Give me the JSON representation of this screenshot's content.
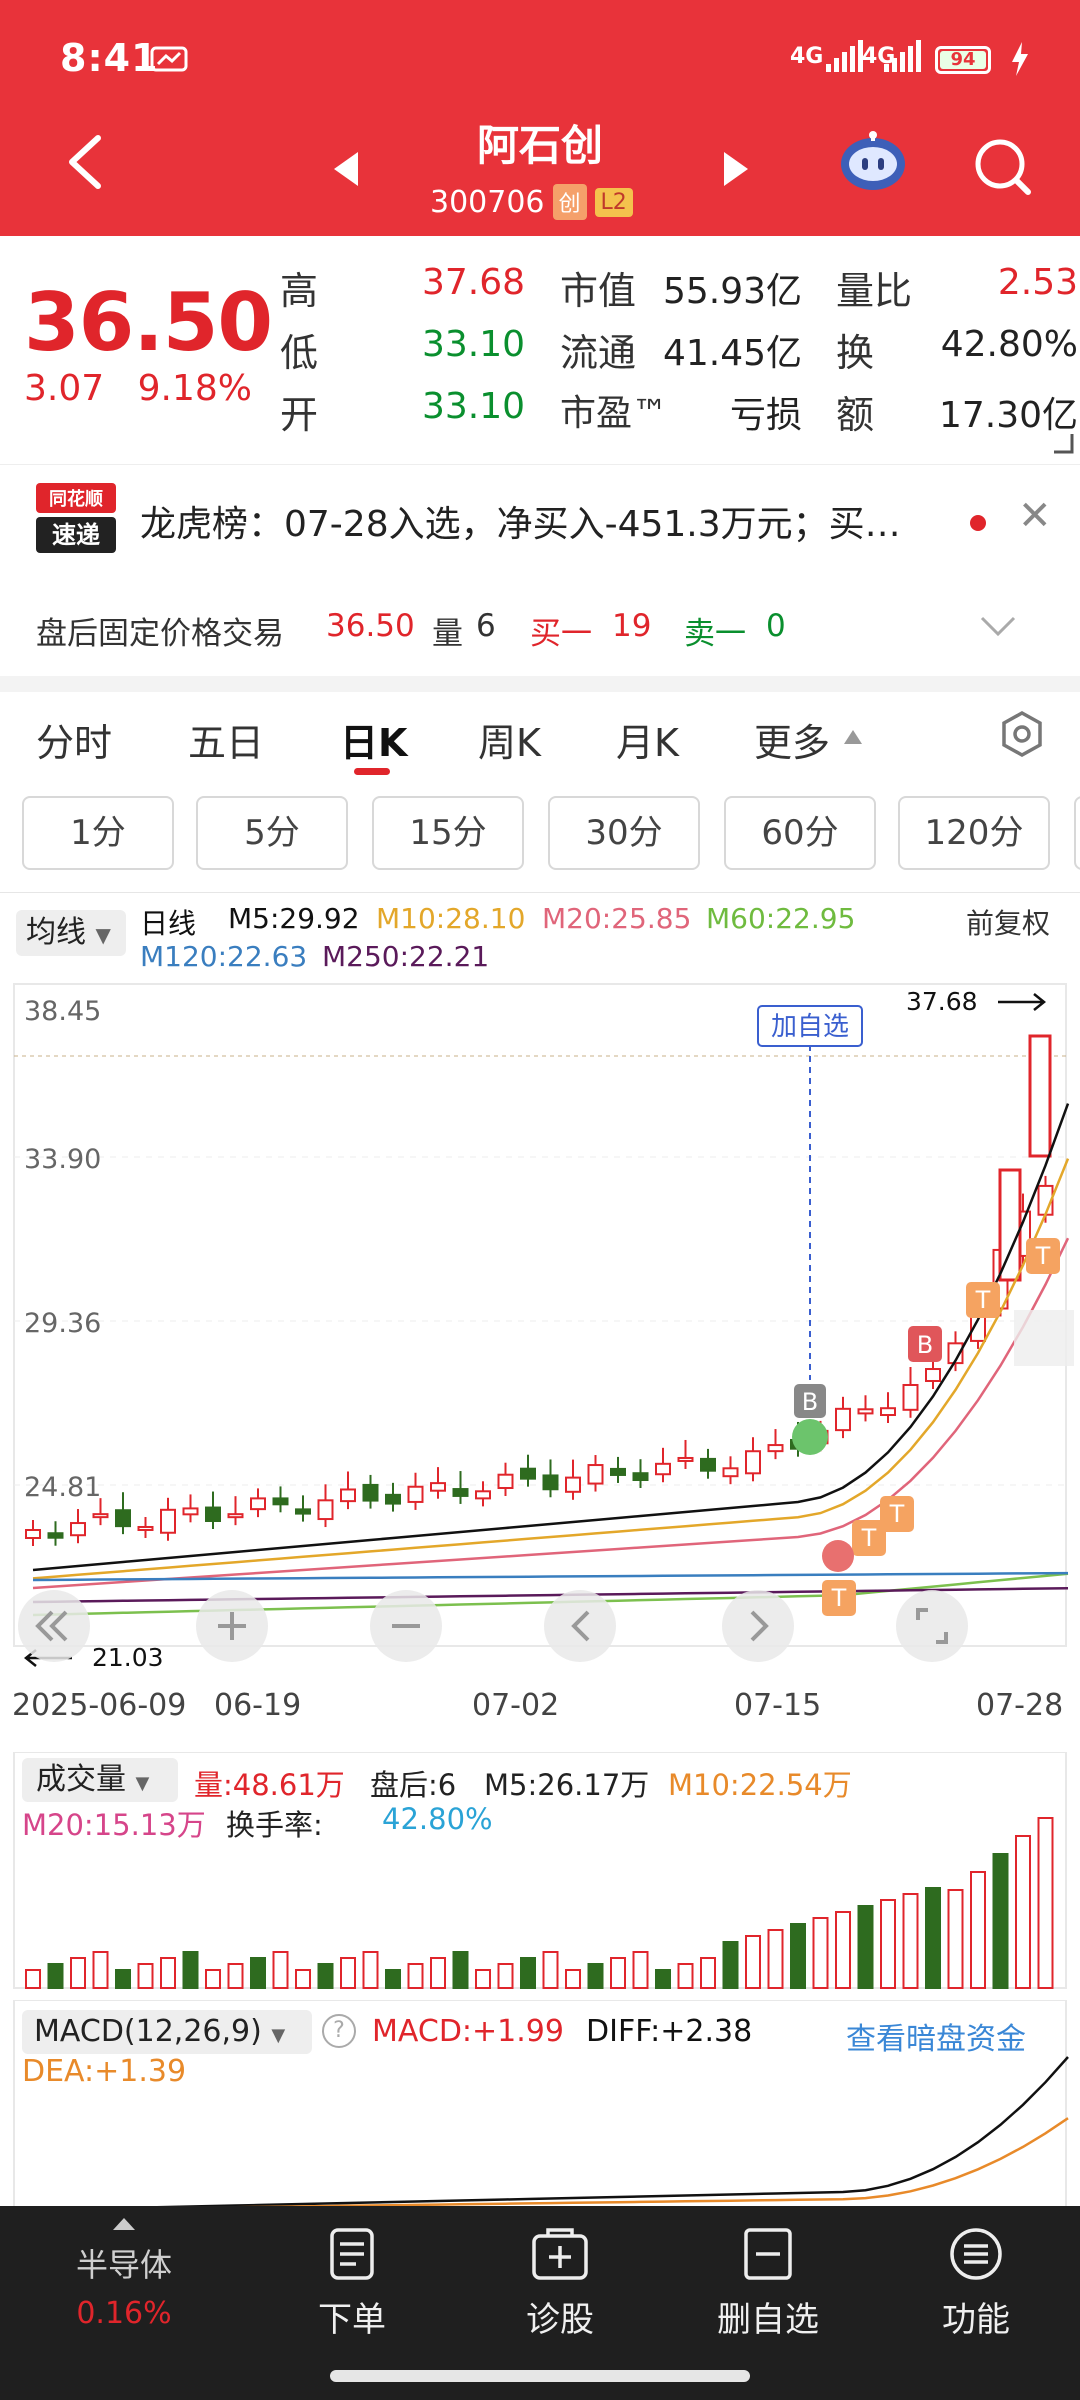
{
  "status": {
    "time": "8:41",
    "network1": "4G",
    "network2": "4G",
    "battery": "94"
  },
  "header": {
    "name": "阿石创",
    "code": "300706",
    "tag1": "创",
    "tag2": "L2"
  },
  "quote": {
    "price": "36.50",
    "change": "3.07",
    "change_pct": "9.18%",
    "high_label": "高",
    "high": "37.68",
    "low_label": "低",
    "low": "33.10",
    "open_label": "开",
    "open": "33.10",
    "mcap_label": "市值",
    "mcap": "55.93亿",
    "float_label": "流通",
    "float": "41.45亿",
    "pe_label": "市盈™",
    "pe": "亏损",
    "volratio_label": "量比",
    "volratio": "2.53",
    "turnover_label": "换",
    "turnover": "42.80%",
    "amount_label": "额",
    "amount": "17.30亿"
  },
  "news": {
    "logo_top": "同花顺",
    "logo_bottom": "速递",
    "text": "龙虎榜：07-28入选，净买入-451.3万元；买…"
  },
  "afterhours": {
    "label": "盘后固定价格交易",
    "price": "36.50",
    "vol_label": "量",
    "vol": "6",
    "buy_label": "买一",
    "buy": "19",
    "sell_label": "卖一",
    "sell": "0"
  },
  "tabs": {
    "t1": "分时",
    "t2": "五日",
    "t3": "日K",
    "t4": "周K",
    "t5": "月K",
    "t6": "更多"
  },
  "periods": [
    "1分",
    "5分",
    "15分",
    "30分",
    "60分",
    "120分"
  ],
  "ma": {
    "select": "均线",
    "type": "日线",
    "m5": "M5:29.92",
    "m10": "M10:28.10",
    "m20": "M20:25.85",
    "m60": "M60:22.95",
    "m120": "M120:22.63",
    "m250": "M250:22.21",
    "adjust": "前复权"
  },
  "chart": {
    "y_labels": [
      "38.45",
      "33.90",
      "29.36",
      "24.81"
    ],
    "x_labels": [
      "2025-06-09",
      "06-19",
      "07-02",
      "07-15",
      "07-28"
    ],
    "high_marker": "37.68",
    "low_marker": "21.03",
    "add_watch": "加自选"
  },
  "volume": {
    "select": "成交量",
    "vol": "量:48.61万",
    "after": "盘后:6",
    "m5": "M5:26.17万",
    "m10": "M10:22.54万",
    "m20": "M20:15.13万",
    "turnover_label": "换手率:",
    "turnover": "42.80%"
  },
  "macd": {
    "select": "MACD(12,26,9)",
    "macd": "MACD:+1.99",
    "diff": "DIFF:+2.38",
    "dea": "DEA:+1.39",
    "link": "查看暗盘资金"
  },
  "nav": {
    "sector": "半导体",
    "sector_pct": "0.16%",
    "order": "下单",
    "diagnose": "诊股",
    "remove": "删自选",
    "func": "功能"
  },
  "colors": {
    "header": "#e8333a",
    "up": "#e0252b",
    "down": "#2e6b1f",
    "ma5": "#111111",
    "ma10": "#e3a72a",
    "ma20": "#e0657a",
    "ma60": "#7cc04e",
    "ma120": "#3a7ebf",
    "ma250": "#5a1a5a"
  }
}
